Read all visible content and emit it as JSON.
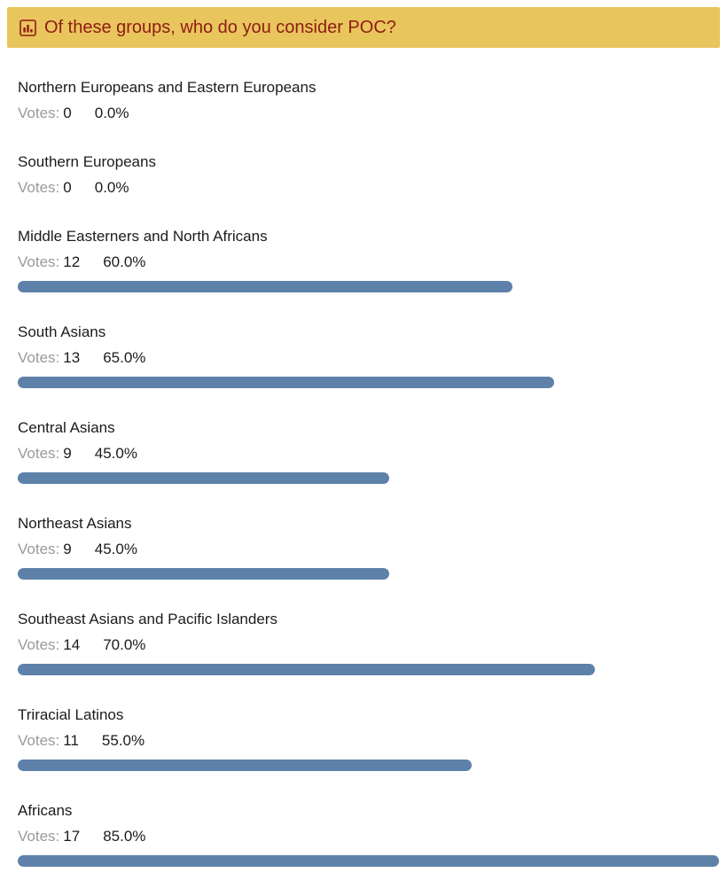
{
  "header": {
    "title": "Of these groups, who do you consider POC?",
    "icon": "poll-bar-chart-icon"
  },
  "labels": {
    "votes": "Votes:"
  },
  "colors": {
    "header_bg": "#e9c55d",
    "header_text": "#8e1c13",
    "bar": "#5d81a9",
    "votes_gray": "#9a9a9a"
  },
  "poll": {
    "options": [
      {
        "label": "Northern Europeans and Eastern Europeans",
        "votes": "0",
        "percent": "0.0%",
        "percent_value": 0
      },
      {
        "label": "Southern Europeans",
        "votes": "0",
        "percent": "0.0%",
        "percent_value": 0
      },
      {
        "label": "Middle Easterners and North Africans",
        "votes": "12",
        "percent": "60.0%",
        "percent_value": 60
      },
      {
        "label": "South Asians",
        "votes": "13",
        "percent": "65.0%",
        "percent_value": 65
      },
      {
        "label": "Central Asians",
        "votes": "9",
        "percent": "45.0%",
        "percent_value": 45
      },
      {
        "label": "Northeast Asians",
        "votes": "9",
        "percent": "45.0%",
        "percent_value": 45
      },
      {
        "label": "Southeast Asians and Pacific Islanders",
        "votes": "14",
        "percent": "70.0%",
        "percent_value": 70
      },
      {
        "label": "Triracial Latinos",
        "votes": "11",
        "percent": "55.0%",
        "percent_value": 55
      },
      {
        "label": "Africans",
        "votes": "17",
        "percent": "85.0%",
        "percent_value": 85
      }
    ]
  },
  "chart_data": {
    "type": "bar",
    "orientation": "horizontal",
    "title": "Of these groups, who do you consider POC?",
    "categories": [
      "Northern Europeans and Eastern Europeans",
      "Southern Europeans",
      "Middle Easterners and North Africans",
      "South Asians",
      "Central Asians",
      "Northeast Asians",
      "Southeast Asians and Pacific Islanders",
      "Triracial Latinos",
      "Africans"
    ],
    "series": [
      {
        "name": "Votes",
        "values": [
          0,
          0,
          12,
          13,
          9,
          9,
          14,
          11,
          17
        ]
      },
      {
        "name": "Percent",
        "values": [
          0.0,
          0.0,
          60.0,
          65.0,
          45.0,
          45.0,
          70.0,
          55.0,
          85.0
        ]
      }
    ],
    "xlabel": "",
    "ylabel": "",
    "xlim": [
      0,
      100
    ],
    "grid": false,
    "legend": false
  }
}
